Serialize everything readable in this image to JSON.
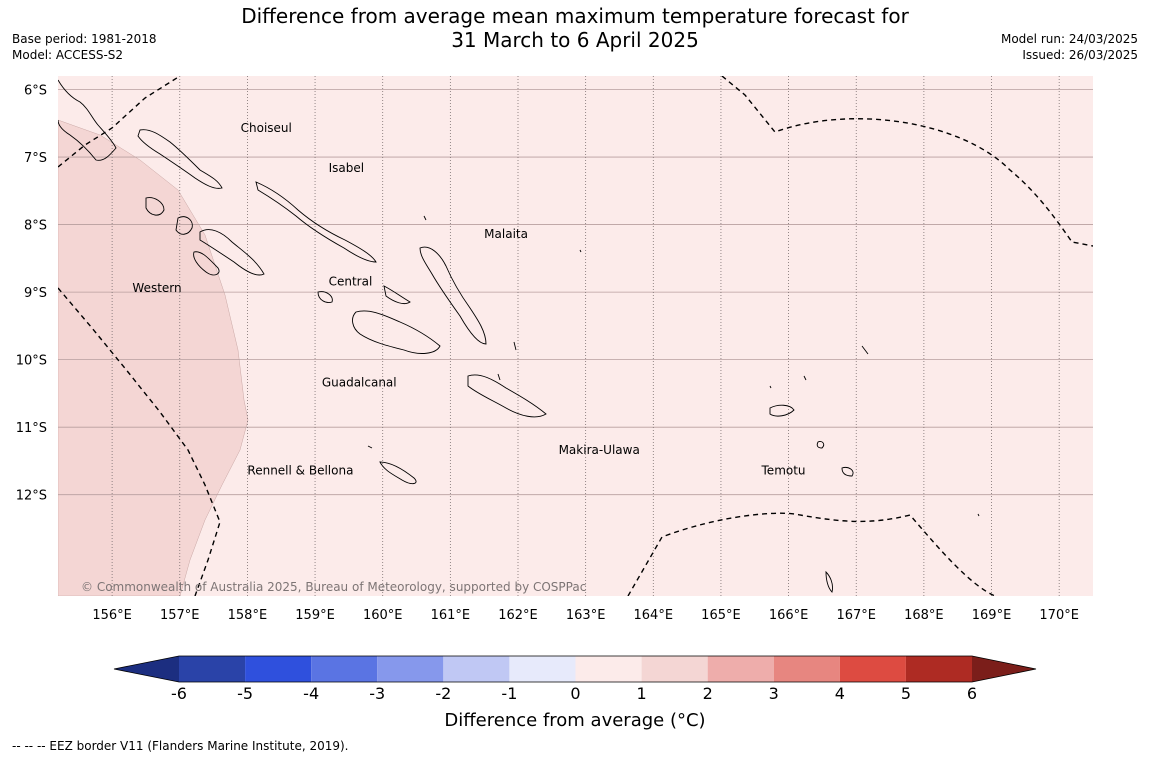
{
  "title_line1": "Difference from average mean maximum temperature forecast for",
  "title_line2": "31 March to 6 April 2025",
  "base_period": "Base period: 1981-2018",
  "model": "Model: ACCESS-S2",
  "model_run": "Model run: 24/03/2025",
  "issued": "Issued: 26/03/2025",
  "copyright": "© Commonwealth of Australia 2025, Bureau of Meteorology, supported by COSPPac",
  "map": {
    "lon_range": [
      155.2,
      170.5
    ],
    "lat_range": [
      -5.8,
      -13.5
    ],
    "lat_ticks": [
      {
        "value": -6,
        "label": "6°S"
      },
      {
        "value": -7,
        "label": "7°S"
      },
      {
        "value": -8,
        "label": "8°S"
      },
      {
        "value": -9,
        "label": "9°S"
      },
      {
        "value": -10,
        "label": "10°S"
      },
      {
        "value": -11,
        "label": "11°S"
      },
      {
        "value": -12,
        "label": "12°S"
      }
    ],
    "lon_ticks": [
      {
        "value": 156,
        "label": "156°E"
      },
      {
        "value": 157,
        "label": "157°E"
      },
      {
        "value": 158,
        "label": "158°E"
      },
      {
        "value": 159,
        "label": "159°E"
      },
      {
        "value": 160,
        "label": "160°E"
      },
      {
        "value": 161,
        "label": "161°E"
      },
      {
        "value": 162,
        "label": "162°E"
      },
      {
        "value": 163,
        "label": "163°E"
      },
      {
        "value": 164,
        "label": "164°E"
      },
      {
        "value": 165,
        "label": "165°E"
      },
      {
        "value": 166,
        "label": "166°E"
      },
      {
        "value": 167,
        "label": "167°E"
      },
      {
        "value": 168,
        "label": "168°E"
      },
      {
        "value": 169,
        "label": "169°E"
      },
      {
        "value": 170,
        "label": "170°E"
      }
    ],
    "background_anomaly_class": "0 to 1",
    "background_color": "#fcebea",
    "warm_region_class": "1 to 2",
    "warm_region_color": "#f4d6d4",
    "provinces": [
      {
        "name": "Choiseul",
        "lon": 157.9,
        "lat": -6.63
      },
      {
        "name": "Isabel",
        "lon": 159.2,
        "lat": -7.22
      },
      {
        "name": "Malaita",
        "lon": 161.5,
        "lat": -8.2
      },
      {
        "name": "Central",
        "lon": 159.2,
        "lat": -8.9
      },
      {
        "name": "Western",
        "lon": 156.3,
        "lat": -9.0
      },
      {
        "name": "Guadalcanal",
        "lon": 159.1,
        "lat": -10.4
      },
      {
        "name": "Makira-Ulawa",
        "lon": 162.6,
        "lat": -11.4
      },
      {
        "name": "Temotu",
        "lon": 165.6,
        "lat": -11.7
      },
      {
        "name": "Rennell & Bellona",
        "lon": 158.0,
        "lat": -11.7
      }
    ]
  },
  "colorbar": {
    "ticks": [
      "-6",
      "-5",
      "-4",
      "-3",
      "-2",
      "-1",
      "0",
      "1",
      "2",
      "3",
      "4",
      "5",
      "6"
    ],
    "colors": [
      "#2a43a8",
      "#2f50dd",
      "#5a74e3",
      "#8698ec",
      "#c0c8f4",
      "#e7eafb",
      "#fcebea",
      "#f4d6d4",
      "#eeadab",
      "#e78680",
      "#dd4b41",
      "#ae2b23"
    ],
    "under_color": "#1c2e80",
    "over_color": "#7b1e1a",
    "label": "Difference from average (°C)"
  },
  "eez_note": "--  --  -- EEZ border V11 (Flanders Marine Institute, 2019)."
}
